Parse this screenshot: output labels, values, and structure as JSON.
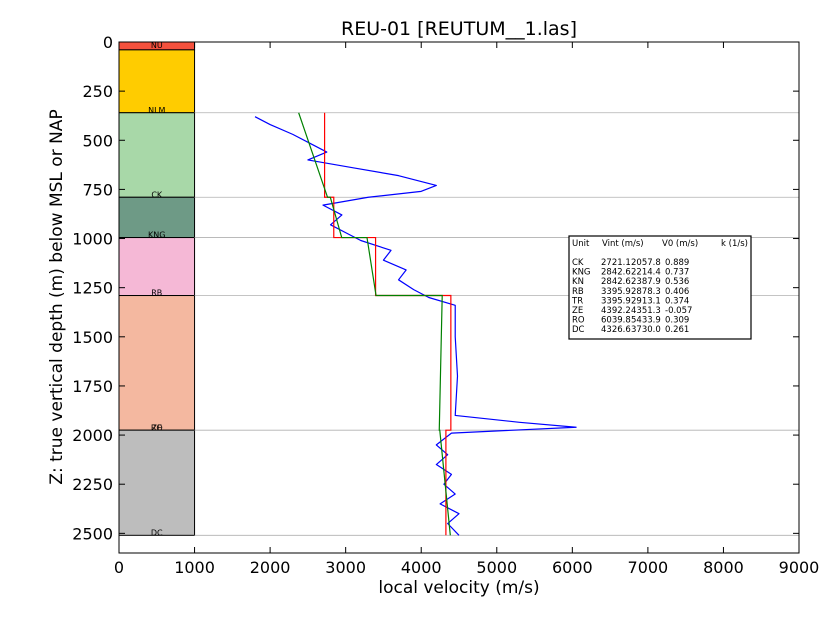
{
  "chart_data": {
    "type": "line",
    "title": "REU-01 [REUTUM__1.las]",
    "xlabel": "local velocity (m/s)",
    "ylabel": "Z: true vertical depth (m) below MSL or NAP",
    "xlim": [
      0,
      9000
    ],
    "ylim": [
      2600,
      0
    ],
    "x_ticks": [
      "0",
      "1000",
      "2000",
      "3000",
      "4000",
      "5000",
      "6000",
      "7000",
      "8000",
      "9000"
    ],
    "y_ticks": [
      "0",
      "250",
      "500",
      "750",
      "1000",
      "1250",
      "1500",
      "1750",
      "2000",
      "2250",
      "2500"
    ],
    "grid": false,
    "units": [
      {
        "name": "NU",
        "top": 0,
        "bottom": 40,
        "color": "#f4513d"
      },
      {
        "name": "NLM",
        "top": 40,
        "bottom": 360,
        "color": "#ffcc00"
      },
      {
        "name": "CK",
        "top": 360,
        "bottom": 790,
        "color": "#a8d8a8"
      },
      {
        "name": "KNG",
        "top": 790,
        "bottom": 995,
        "color": "#6e9a86"
      },
      {
        "name": "RB",
        "top": 995,
        "bottom": 1290,
        "color": "#f5b8d6"
      },
      {
        "name": "RO",
        "top": 1290,
        "bottom": 1975,
        "color": "#f4b8a0"
      },
      {
        "name": "DC",
        "top": 1975,
        "bottom": 2510,
        "color": "#bdbdbd"
      }
    ],
    "unit_labels": [
      {
        "text": "NU",
        "depth": 0
      },
      {
        "text": "NLM",
        "depth": 330
      },
      {
        "text": "CK",
        "depth": 760
      },
      {
        "text": "KNG",
        "depth": 965
      },
      {
        "text": "RB",
        "depth": 1260
      },
      {
        "text": "ZE",
        "depth": 1945
      },
      {
        "text": "RO",
        "depth": 1945
      },
      {
        "text": "DC",
        "depth": 2480
      }
    ],
    "boundaries": [
      360,
      790,
      995,
      1290,
      1975,
      2510
    ],
    "series": [
      {
        "color": "#ff0000",
        "segments": [
          {
            "v": 2721.1,
            "top": 360,
            "bottom": 790
          },
          {
            "v": 2842.6,
            "top": 790,
            "bottom": 995
          },
          {
            "v": 3395.9,
            "top": 995,
            "bottom": 1290
          },
          {
            "v": 4392.2,
            "top": 1290,
            "bottom": 1975
          },
          {
            "v": 4326.6,
            "top": 1975,
            "bottom": 2510
          }
        ]
      },
      {
        "color": "#008000",
        "segments": [
          {
            "v0": 2057.8,
            "k": 0.889,
            "top": 360,
            "bottom": 790
          },
          {
            "v0": 2214.4,
            "k": 0.737,
            "top": 790,
            "bottom": 995
          },
          {
            "v0": 2878.3,
            "k": 0.406,
            "top": 995,
            "bottom": 1290
          },
          {
            "v0": 4351.3,
            "k": -0.057,
            "top": 1290,
            "bottom": 1975
          },
          {
            "v0": 3730.0,
            "k": 0.261,
            "top": 1975,
            "bottom": 2510
          }
        ]
      },
      {
        "color": "#0000ff",
        "points": [
          [
            1800,
            380
          ],
          [
            2000,
            420
          ],
          [
            2300,
            470
          ],
          [
            2550,
            520
          ],
          [
            2750,
            560
          ],
          [
            2500,
            600
          ],
          [
            3100,
            640
          ],
          [
            3700,
            680
          ],
          [
            4200,
            730
          ],
          [
            4000,
            760
          ],
          [
            3300,
            790
          ],
          [
            2700,
            830
          ],
          [
            2950,
            880
          ],
          [
            2800,
            930
          ],
          [
            3050,
            980
          ],
          [
            3200,
            1010
          ],
          [
            3600,
            1060
          ],
          [
            3500,
            1110
          ],
          [
            3800,
            1160
          ],
          [
            3700,
            1210
          ],
          [
            3900,
            1260
          ],
          [
            4100,
            1300
          ],
          [
            4450,
            1340
          ],
          [
            4450,
            1500
          ],
          [
            4480,
            1700
          ],
          [
            4450,
            1900
          ],
          [
            5300,
            1935
          ],
          [
            6050,
            1960
          ],
          [
            4400,
            1990
          ],
          [
            4200,
            2050
          ],
          [
            4350,
            2100
          ],
          [
            4200,
            2150
          ],
          [
            4400,
            2200
          ],
          [
            4300,
            2250
          ],
          [
            4450,
            2300
          ],
          [
            4250,
            2350
          ],
          [
            4500,
            2400
          ],
          [
            4350,
            2450
          ],
          [
            4500,
            2510
          ]
        ]
      }
    ],
    "table": {
      "header": {
        "unit": "Unit",
        "vint": "Vint (m/s)",
        "v0": "V0 (m/s)",
        "k": "k (1/s)"
      },
      "rows": [
        {
          "unit": "CK",
          "vint": "2721.1",
          "v0": "2057.8",
          "k": "0.889"
        },
        {
          "unit": "KNG",
          "vint": "2842.6",
          "v0": "2214.4",
          "k": "0.737"
        },
        {
          "unit": "KN",
          "vint": "2842.6",
          "v0": "2387.9",
          "k": "0.536"
        },
        {
          "unit": "RB",
          "vint": "3395.9",
          "v0": "2878.3",
          "k": "0.406"
        },
        {
          "unit": "TR",
          "vint": "3395.9",
          "v0": "2913.1",
          "k": "0.374"
        },
        {
          "unit": "ZE",
          "vint": "4392.2",
          "v0": "4351.3",
          "k": "-0.057"
        },
        {
          "unit": "RO",
          "vint": "6039.8",
          "v0": "5433.9",
          "k": "0.309"
        },
        {
          "unit": "DC",
          "vint": "4326.6",
          "v0": "3730.0",
          "k": "0.261"
        }
      ]
    }
  }
}
